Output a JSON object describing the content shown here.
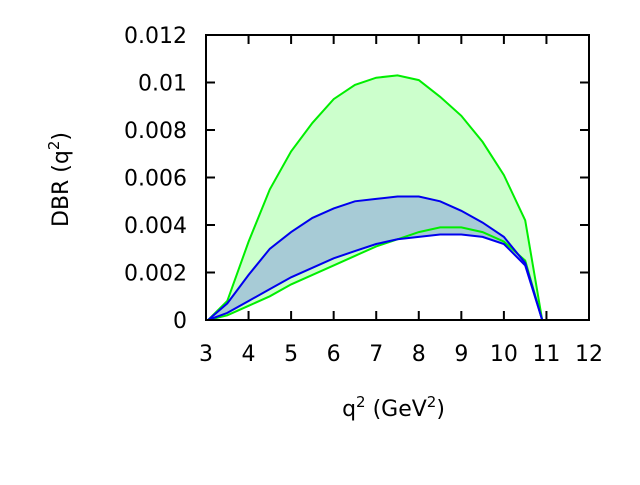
{
  "chart_data": {
    "type": "area",
    "title": "",
    "xlabel": "q",
    "xlabel_sup": "2",
    "xlabel_unit": " (GeV",
    "xlabel_unit_sup": "2",
    "xlabel_close": ")",
    "ylabel": "DBR (q",
    "ylabel_sup": "2",
    "ylabel_close": ")",
    "xlim": [
      3,
      12
    ],
    "ylim": [
      0,
      0.012
    ],
    "x_ticks": [
      3,
      4,
      5,
      6,
      7,
      8,
      9,
      10,
      11,
      12
    ],
    "x_tick_labels": [
      "3",
      "4",
      "5",
      "6",
      "7",
      "8",
      "9",
      "10",
      "11",
      "12"
    ],
    "y_ticks": [
      0,
      0.002,
      0.004,
      0.006,
      0.008,
      0.01,
      0.012
    ],
    "y_tick_labels": [
      "0",
      "0.002",
      "0.004",
      "0.006",
      "0.008",
      "0.01",
      "0.012"
    ],
    "grid": false,
    "legend": "none",
    "bands": [
      {
        "fill": "#ccffcc",
        "stroke": "#00ee00",
        "x": [
          3.05,
          3.5,
          4.0,
          4.5,
          5.0,
          5.5,
          6.0,
          6.5,
          7.0,
          7.5,
          8.0,
          8.5,
          9.0,
          9.5,
          10.0,
          10.5,
          10.9
        ],
        "upper": [
          0,
          0.0008,
          0.0033,
          0.0055,
          0.0071,
          0.0083,
          0.0093,
          0.0099,
          0.0102,
          0.0103,
          0.0101,
          0.0094,
          0.0086,
          0.0075,
          0.0061,
          0.0042,
          0
        ],
        "lower": [
          0,
          0.0002,
          0.0006,
          0.001,
          0.0015,
          0.0019,
          0.0023,
          0.0027,
          0.0031,
          0.0034,
          0.0037,
          0.0039,
          0.0039,
          0.0037,
          0.0033,
          0.0025,
          0
        ]
      },
      {
        "fill": "#a7cbd6",
        "stroke": "#0000ee",
        "x": [
          3.05,
          3.5,
          4.0,
          4.5,
          5.0,
          5.5,
          6.0,
          6.5,
          7.0,
          7.5,
          8.0,
          8.5,
          9.0,
          9.5,
          10.0,
          10.5,
          10.9
        ],
        "upper": [
          0,
          0.0007,
          0.0019,
          0.003,
          0.0037,
          0.0043,
          0.0047,
          0.005,
          0.0051,
          0.0052,
          0.0052,
          0.005,
          0.0046,
          0.0041,
          0.0035,
          0.0024,
          0
        ],
        "lower": [
          0,
          0.0003,
          0.0008,
          0.0013,
          0.0018,
          0.0022,
          0.0026,
          0.0029,
          0.0032,
          0.0034,
          0.0035,
          0.0036,
          0.0036,
          0.0035,
          0.0032,
          0.0023,
          0
        ]
      }
    ]
  }
}
